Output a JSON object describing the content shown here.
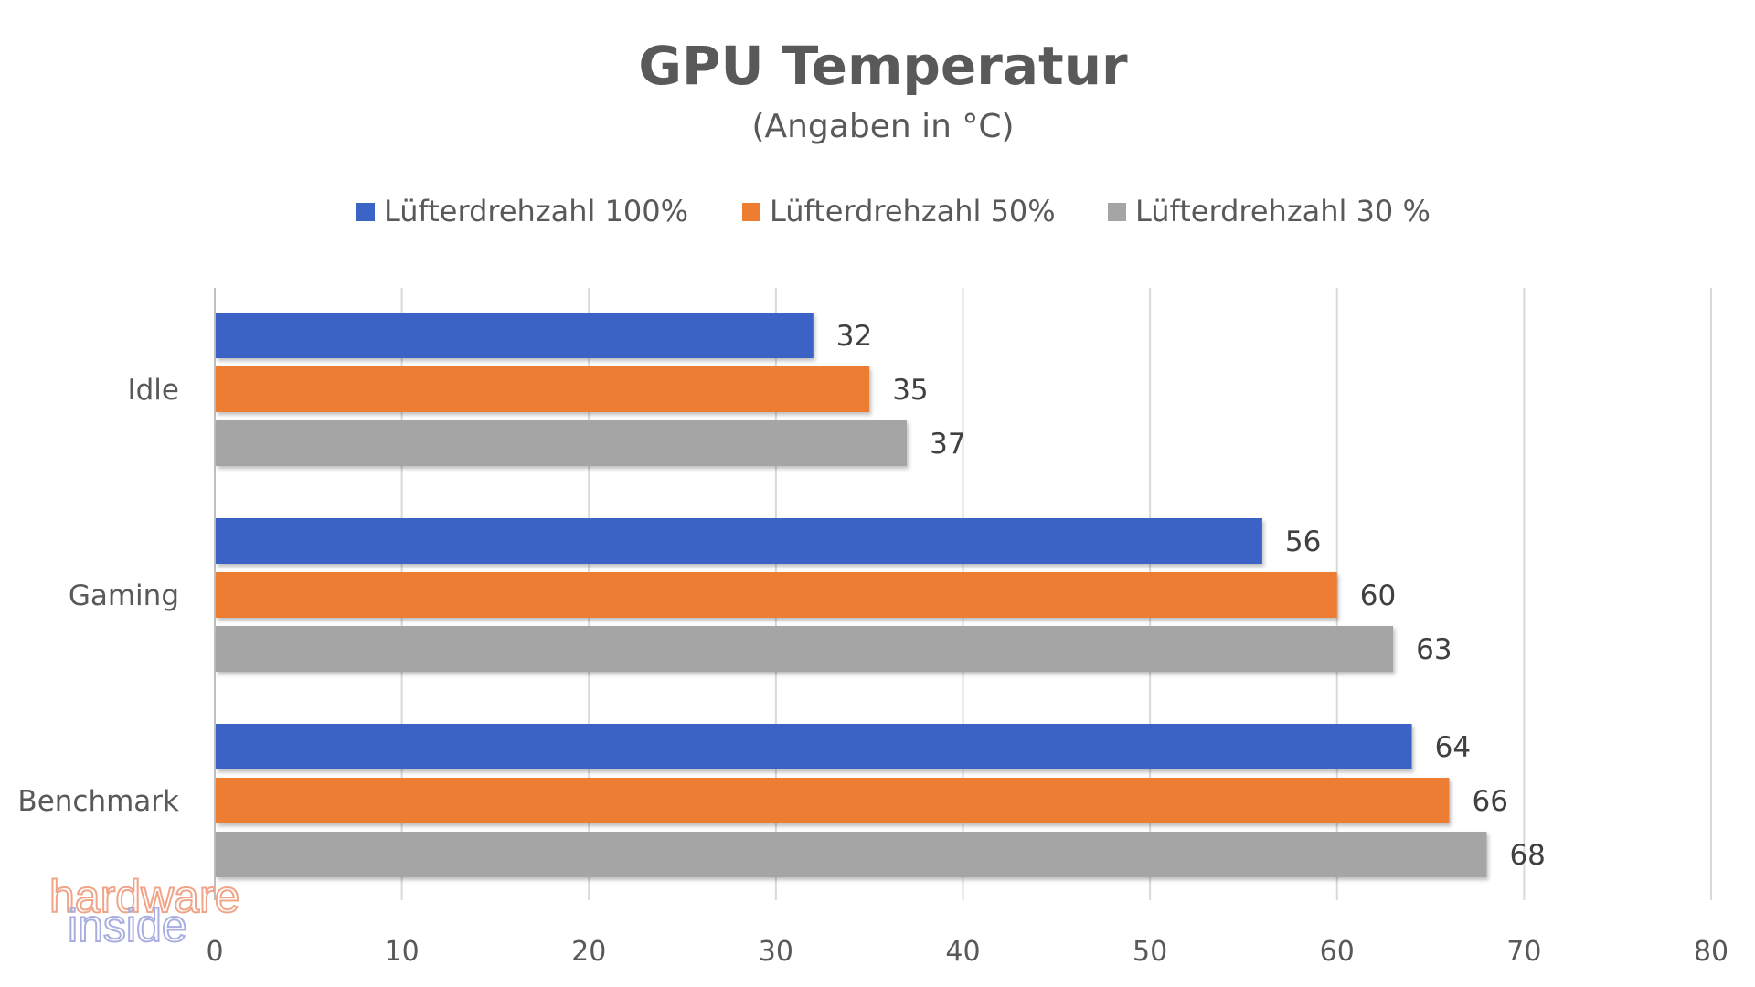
{
  "chart_data": {
    "type": "bar",
    "orientation": "horizontal",
    "title": "GPU Temperatur",
    "subtitle": "(Angaben in °C)",
    "categories": [
      "Idle",
      "Gaming",
      "Benchmark"
    ],
    "series": [
      {
        "name": "Lüfterdrehzahl 100%",
        "color": "#3a64c6",
        "values": [
          32,
          56,
          64
        ]
      },
      {
        "name": "Lüfterdrehzahl 50%",
        "color": "#ed7d31",
        "values": [
          35,
          60,
          66
        ]
      },
      {
        "name": "Lüfterdrehzahl 30 %",
        "color": "#a5a5a5",
        "values": [
          37,
          63,
          68
        ]
      }
    ],
    "xlim": [
      0,
      80
    ],
    "xticks": [
      0,
      10,
      20,
      30,
      40,
      50,
      60,
      70,
      80
    ],
    "grid": true,
    "legend_position": "top"
  },
  "watermark": {
    "line1": "hardware",
    "line2": "inside"
  }
}
